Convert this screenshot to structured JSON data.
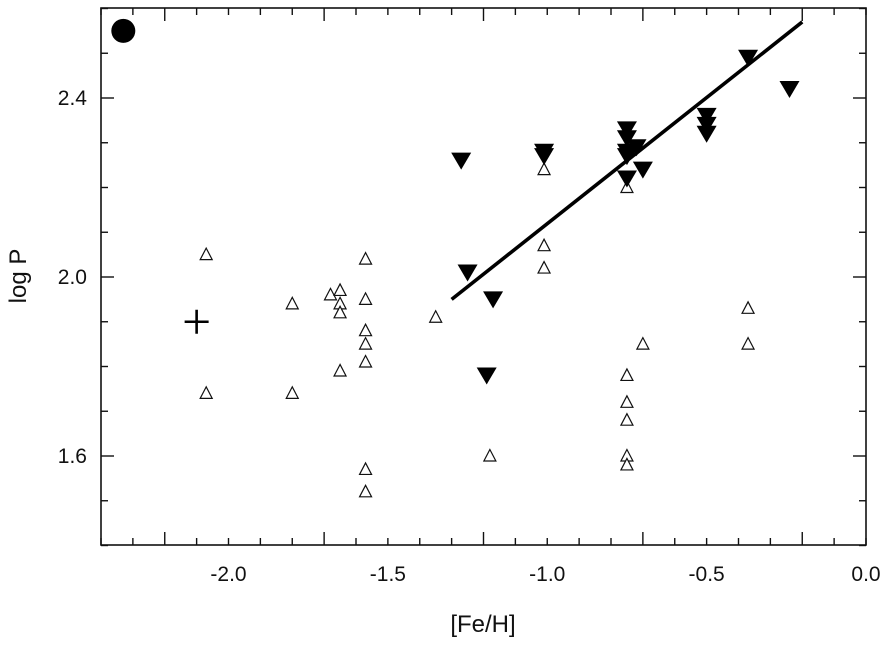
{
  "chart_data": {
    "type": "scatter",
    "xlabel": "[Fe/H]",
    "ylabel": "log P",
    "xlim": [
      -2.4,
      0.0
    ],
    "ylim": [
      1.3,
      2.6
    ],
    "x_ticks": [
      -2.0,
      -1.5,
      -1.0,
      -0.5,
      0.0
    ],
    "x_tick_labels": [
      "-2.0",
      "-1.5",
      "-1.0",
      "-0.5",
      "0.0"
    ],
    "y_ticks": [
      1.6,
      2.0,
      2.4
    ],
    "y_tick_labels": [
      "1.6",
      "2.0",
      "2.4"
    ],
    "grid": false,
    "series": [
      {
        "marker": "open-triangle-up",
        "color": "#111111",
        "points": [
          [
            -2.07,
            2.05
          ],
          [
            -2.07,
            1.74
          ],
          [
            -1.8,
            1.94
          ],
          [
            -1.8,
            1.74
          ],
          [
            -1.68,
            1.96
          ],
          [
            -1.65,
            1.97
          ],
          [
            -1.65,
            1.94
          ],
          [
            -1.65,
            1.92
          ],
          [
            -1.65,
            1.79
          ],
          [
            -1.57,
            2.04
          ],
          [
            -1.57,
            1.95
          ],
          [
            -1.57,
            1.88
          ],
          [
            -1.57,
            1.85
          ],
          [
            -1.57,
            1.81
          ],
          [
            -1.57,
            1.57
          ],
          [
            -1.57,
            1.52
          ],
          [
            -1.35,
            1.91
          ],
          [
            -1.18,
            1.6
          ],
          [
            -1.01,
            2.24
          ],
          [
            -1.01,
            2.07
          ],
          [
            -1.01,
            2.02
          ],
          [
            -0.75,
            2.2
          ],
          [
            -0.75,
            1.78
          ],
          [
            -0.75,
            1.72
          ],
          [
            -0.75,
            1.68
          ],
          [
            -0.75,
            1.6
          ],
          [
            -0.75,
            1.58
          ],
          [
            -0.7,
            1.85
          ],
          [
            -0.37,
            1.93
          ],
          [
            -0.37,
            1.85
          ]
        ]
      },
      {
        "marker": "filled-triangle-down",
        "color": "#000000",
        "points": [
          [
            -1.27,
            2.26
          ],
          [
            -1.25,
            2.01
          ],
          [
            -1.17,
            1.95
          ],
          [
            -1.19,
            1.78
          ],
          [
            -1.01,
            2.28
          ],
          [
            -1.01,
            2.27
          ],
          [
            -0.75,
            2.33
          ],
          [
            -0.75,
            2.31
          ],
          [
            -0.75,
            2.28
          ],
          [
            -0.75,
            2.27
          ],
          [
            -0.75,
            2.22
          ],
          [
            -0.72,
            2.29
          ],
          [
            -0.7,
            2.24
          ],
          [
            -0.5,
            2.36
          ],
          [
            -0.5,
            2.34
          ],
          [
            -0.5,
            2.32
          ],
          [
            -0.37,
            2.49
          ],
          [
            -0.24,
            2.42
          ]
        ]
      },
      {
        "marker": "plus",
        "color": "#000000",
        "points": [
          [
            -2.1,
            1.9
          ]
        ]
      },
      {
        "marker": "filled-circle",
        "color": "#000000",
        "points": [
          [
            -2.33,
            2.55
          ]
        ]
      }
    ],
    "fit_line": {
      "x": [
        -1.3,
        -0.2
      ],
      "y": [
        1.95,
        2.57
      ]
    }
  }
}
